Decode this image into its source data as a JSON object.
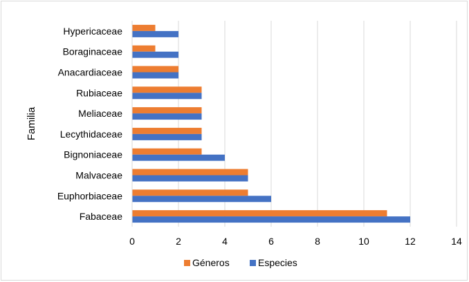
{
  "chart_data": {
    "type": "bar",
    "orientation": "horizontal",
    "ylabel": "Familia",
    "xlabel": "",
    "xlim": [
      0,
      14
    ],
    "xticks": [
      0,
      2,
      4,
      6,
      8,
      10,
      12,
      14
    ],
    "grid": "vertical",
    "legend_position": "bottom",
    "categories": [
      "Hypericaceae",
      "Boraginaceae",
      "Anacardiaceae",
      "Rubiaceae",
      "Meliaceae",
      "Lecythidaceae",
      "Bignoniaceae",
      "Malvaceae",
      "Euphorbiaceae",
      "Fabaceae"
    ],
    "series": [
      {
        "name": "Géneros",
        "color": "#ED7D31",
        "values": [
          1,
          1,
          2,
          3,
          3,
          3,
          3,
          5,
          5,
          11
        ]
      },
      {
        "name": "Especies",
        "color": "#4472C4",
        "values": [
          2,
          2,
          2,
          3,
          3,
          3,
          4,
          5,
          6,
          12
        ]
      }
    ]
  }
}
